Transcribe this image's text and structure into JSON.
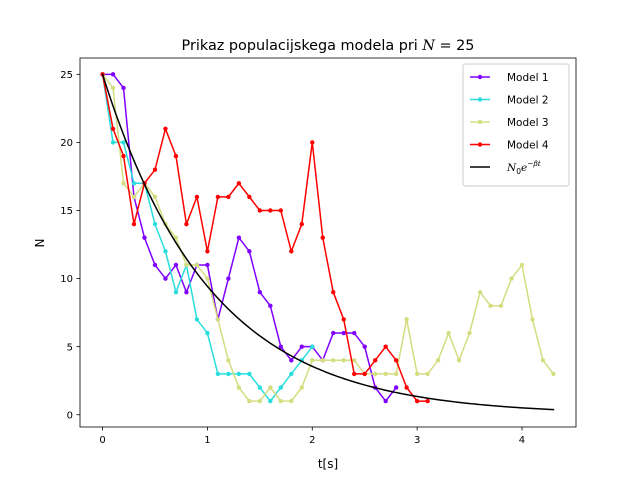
{
  "chart_data": {
    "type": "line",
    "title": "Prikaz populacijskega modela pri N = 25",
    "title_parts": {
      "text": "Prikaz populacijskega modela pri ",
      "var": "N",
      "rest": " = 25"
    },
    "xlabel": "t[s]",
    "ylabel": "N",
    "xlim": [
      -0.215,
      4.515
    ],
    "ylim": [
      -0.9,
      26.2
    ],
    "xticks": [
      0,
      1,
      2,
      3,
      4
    ],
    "yticks": [
      0,
      5,
      10,
      15,
      20,
      25
    ],
    "grid": false,
    "legend_position": "top-right",
    "series": [
      {
        "name": "Model 1",
        "color": "#8000ff",
        "markers": true,
        "x": [
          0,
          0.1,
          0.2,
          0.3,
          0.4,
          0.5,
          0.6,
          0.7,
          0.8,
          0.9,
          1.0,
          1.1,
          1.2,
          1.3,
          1.4,
          1.5,
          1.6,
          1.7,
          1.8,
          1.9,
          2.0,
          2.1,
          2.2,
          2.3,
          2.4,
          2.5,
          2.6,
          2.7,
          2.8
        ],
        "y": [
          25,
          25,
          24,
          16,
          13,
          11,
          10,
          11,
          9,
          11,
          11,
          7,
          10,
          13,
          12,
          9,
          8,
          5,
          4,
          5,
          5,
          4,
          6,
          6,
          6,
          5,
          2,
          1,
          2
        ]
      },
      {
        "name": "Model 2",
        "color": "#2adddd",
        "markers": true,
        "x": [
          0,
          0.1,
          0.2,
          0.3,
          0.4,
          0.5,
          0.6,
          0.7,
          0.8,
          0.9,
          1.0,
          1.1,
          1.2,
          1.3,
          1.4,
          1.5,
          1.6,
          1.7,
          1.8,
          1.9,
          2.0
        ],
        "y": [
          25,
          20,
          20,
          17,
          17,
          14,
          12,
          9,
          11,
          7,
          6,
          3,
          3,
          3,
          3,
          2,
          1,
          2,
          3,
          4,
          5
        ]
      },
      {
        "name": "Model 3",
        "color": "#d4dd80",
        "markers": true,
        "x": [
          0,
          0.1,
          0.2,
          0.3,
          0.4,
          0.5,
          0.6,
          0.7,
          0.8,
          0.9,
          1.0,
          1.1,
          1.2,
          1.3,
          1.4,
          1.5,
          1.6,
          1.7,
          1.8,
          1.9,
          2.0,
          2.1,
          2.2,
          2.3,
          2.4,
          2.5,
          2.6,
          2.7,
          2.8,
          2.9,
          3.0,
          3.1,
          3.2,
          3.3,
          3.4,
          3.5,
          3.6,
          3.7,
          3.8,
          3.9,
          4.0,
          4.1,
          4.2,
          4.3
        ],
        "y": [
          25,
          24,
          17,
          16,
          17,
          16,
          14,
          13,
          11,
          11,
          10,
          7,
          4,
          2,
          1,
          1,
          2,
          1,
          1,
          2,
          4,
          4,
          4,
          4,
          4,
          3,
          3,
          3,
          3,
          7,
          3,
          3,
          4,
          6,
          4,
          6,
          9,
          8,
          8,
          10,
          11,
          7,
          4,
          3
        ]
      },
      {
        "name": "Model 4",
        "color": "#ff0000",
        "markers": true,
        "x": [
          0,
          0.1,
          0.2,
          0.3,
          0.4,
          0.5,
          0.6,
          0.7,
          0.8,
          0.9,
          1.0,
          1.1,
          1.2,
          1.3,
          1.4,
          1.5,
          1.6,
          1.7,
          1.8,
          1.9,
          2.0,
          2.1,
          2.2,
          2.3,
          2.4,
          2.5,
          2.6,
          2.7,
          2.8,
          2.9,
          3.0,
          3.1
        ],
        "y": [
          25,
          21,
          19,
          14,
          17,
          18,
          21,
          19,
          14,
          16,
          12,
          16,
          16,
          17,
          16,
          15,
          15,
          15,
          12,
          14,
          20,
          13,
          9,
          7,
          3,
          3,
          4,
          5,
          4,
          2,
          1,
          1
        ]
      },
      {
        "name": "N0e^(-βt)",
        "legend_label": {
          "base": "N",
          "sub": "0",
          "e": "e",
          "sup": "−βt"
        },
        "color": "#000000",
        "markers": false,
        "function": {
          "N0": 25,
          "beta": 0.975,
          "t_start": 0,
          "t_end": 4.3
        }
      }
    ]
  }
}
